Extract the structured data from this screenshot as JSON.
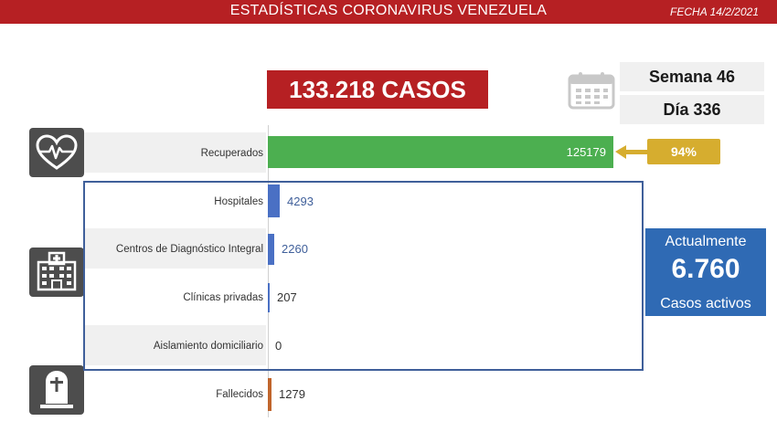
{
  "header": {
    "title": "ESTADÍSTICAS CORONAVIRUS VENEZUELA",
    "date": "FECHA 14/2/2021"
  },
  "summary": {
    "total_cases": "133.218 CASOS",
    "week": "Semana 46",
    "day": "Día 336",
    "recovered_pct": "94%",
    "active_title": "Actualmente",
    "active_value": "6.760",
    "active_label": "Casos activos"
  },
  "icons": {
    "recovered": "heart-pulse-icon",
    "hospital": "hospital-icon",
    "deaths": "tombstone-icon",
    "calendar": "calendar-icon"
  },
  "colors": {
    "header": "#b62023",
    "recovered": "#4caf50",
    "hospital": "#4a70c4",
    "deaths": "#c0652c",
    "badge": "#d6ad2f",
    "active": "#2f6ab4"
  },
  "chart_data": {
    "type": "bar",
    "orientation": "horizontal",
    "categories": [
      "Recuperados",
      "Hospitales",
      "Centros de Diagnóstico Integral",
      "Clínicas privadas",
      "Aislamiento domiciliario",
      "Fallecidos"
    ],
    "values": [
      125179,
      4293,
      2260,
      207,
      0,
      1279
    ],
    "labels": [
      "125179",
      "4293",
      "2260",
      "207",
      "0",
      "1279"
    ]
  }
}
